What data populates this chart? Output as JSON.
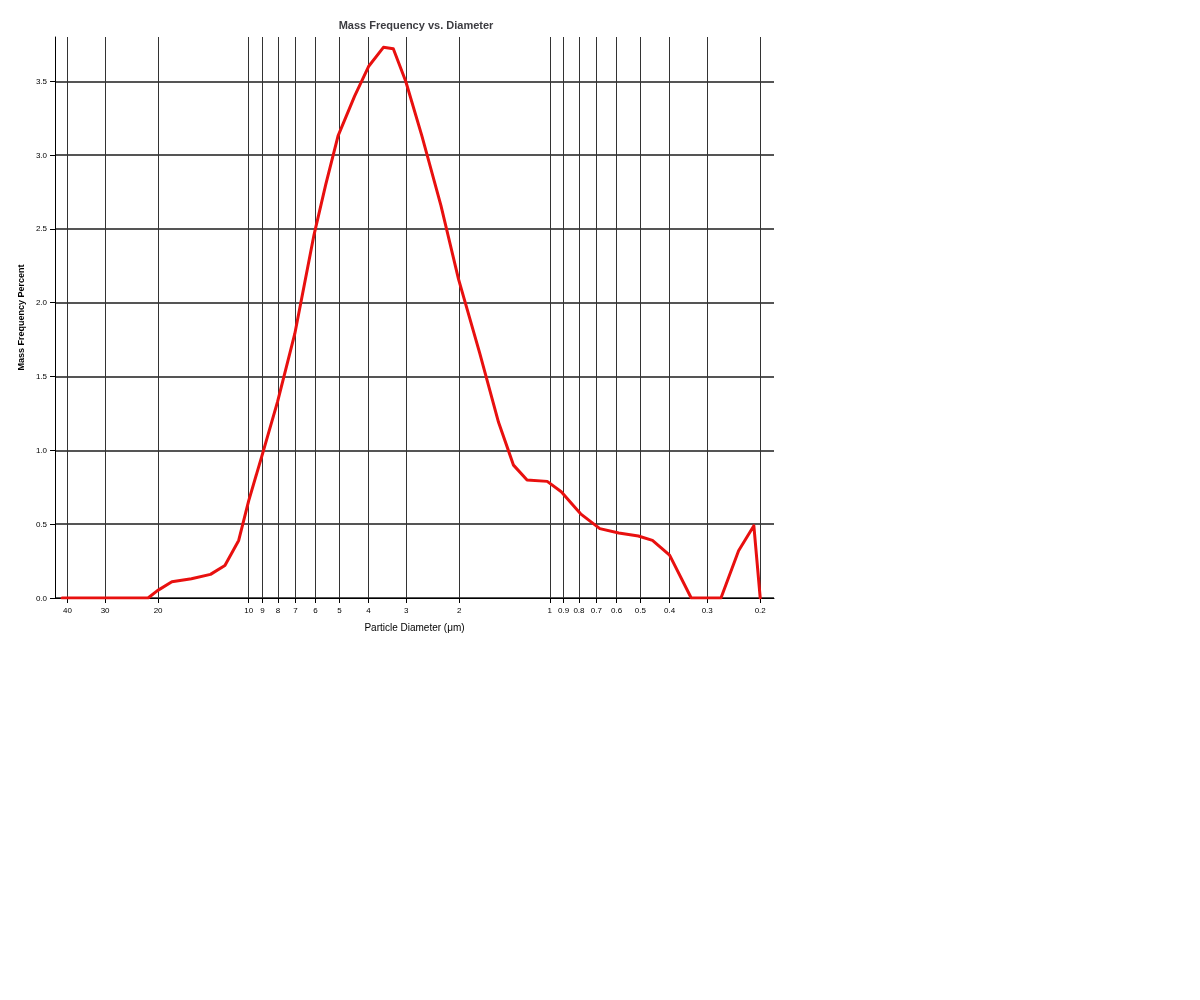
{
  "chart_data": {
    "type": "line",
    "title": "Mass Frequency vs. Diameter",
    "xlabel": "Particle Diameter (μm)",
    "ylabel": "Mass Frequency Percent",
    "log": "x",
    "grid": true,
    "marker": "none",
    "line_style": "solid",
    "xlim": [
      44,
      0.18
    ],
    "xticks": [
      40,
      30,
      20,
      10,
      9,
      8,
      7,
      6,
      5,
      4,
      3,
      2,
      1,
      0.9,
      0.8,
      0.7,
      0.6,
      0.5,
      0.4,
      0.3,
      0.2
    ],
    "ylim": [
      0,
      3.8
    ],
    "yticks": [
      {
        "value": 0,
        "label": "0.0"
      },
      {
        "value": 0.5,
        "label": "0.5"
      },
      {
        "value": 1,
        "label": "1.0"
      },
      {
        "value": 1.5,
        "label": "1.5"
      },
      {
        "value": 2,
        "label": "2.0"
      },
      {
        "value": 2.5,
        "label": "2.5"
      },
      {
        "value": 3,
        "label": "3.0"
      },
      {
        "value": 3.5,
        "label": "3.5"
      }
    ],
    "series": [
      {
        "color": "#e8100f",
        "x": [
          41.7,
          21.6,
          20.1,
          18.0,
          15.5,
          13.4,
          12.0,
          10.8,
          10,
          8.96,
          8.02,
          7.03,
          6.07,
          5.55,
          5.05,
          4.45,
          4.0,
          3.57,
          3.31,
          3.01,
          2.66,
          2.3,
          2.01,
          1.71,
          1.48,
          1.32,
          1.19,
          1.02,
          0.916,
          0.79,
          0.682,
          0.59,
          0.508,
          0.456,
          0.4,
          0.339,
          0.27,
          0.236,
          0.21,
          0.2
        ],
        "values": [
          0,
          0,
          0.05,
          0.11,
          0.13,
          0.16,
          0.22,
          0.39,
          0.66,
          0.99,
          1.33,
          1.79,
          2.46,
          2.8,
          3.13,
          3.4,
          3.6,
          3.73,
          3.72,
          3.5,
          3.13,
          2.66,
          2.16,
          1.66,
          1.19,
          0.9,
          0.8,
          0.79,
          0.72,
          0.57,
          0.47,
          0.44,
          0.42,
          0.39,
          0.29,
          0,
          0,
          0.32,
          0.49,
          0
        ]
      }
    ]
  }
}
